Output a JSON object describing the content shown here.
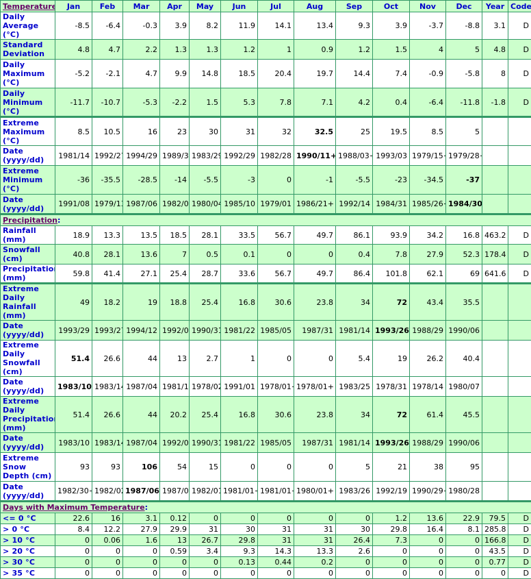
{
  "colors": {
    "label": "#0000cc",
    "section": "#660066",
    "green_row": "#ccffcc",
    "border": "#339966"
  },
  "columns": [
    "Jan",
    "Feb",
    "Mar",
    "Apr",
    "May",
    "Jun",
    "Jul",
    "Aug",
    "Sep",
    "Oct",
    "Nov",
    "Dec",
    "Year",
    "Code"
  ],
  "sections": [
    {
      "title": "Temperature",
      "rows": [
        {
          "label": "Daily Average (°C)",
          "bg": "w",
          "h": 28,
          "values": [
            "-8.5",
            "-6.4",
            "-0.3",
            "3.9",
            "8.2",
            "11.9",
            "14.1",
            "13.4",
            "9.3",
            "3.9",
            "-3.7",
            "-8.8",
            "3.1",
            "D"
          ],
          "bold": []
        },
        {
          "label": "Standard Deviation",
          "bg": "g",
          "h": 29,
          "values": [
            "4.8",
            "4.7",
            "2.2",
            "1.3",
            "1.3",
            "1.2",
            "1",
            "0.9",
            "1.2",
            "1.5",
            "4",
            "5",
            "4.8",
            "D"
          ],
          "bold": []
        },
        {
          "label": "Daily Maximum (°C)",
          "bg": "w",
          "h": 42,
          "values": [
            "-5.2",
            "-2.1",
            "4.7",
            "9.9",
            "14.8",
            "18.5",
            "20.4",
            "19.7",
            "14.4",
            "7.4",
            "-0.9",
            "-5.8",
            "8",
            "D"
          ],
          "bold": []
        },
        {
          "label": "Daily Minimum (°C)",
          "bg": "g",
          "h": 42,
          "values": [
            "-11.7",
            "-10.7",
            "-5.3",
            "-2.2",
            "1.5",
            "5.3",
            "7.8",
            "7.1",
            "4.2",
            "0.4",
            "-6.4",
            "-11.8",
            "-1.8",
            "D"
          ],
          "bold": []
        },
        {
          "label": "Extreme Maximum (°C)",
          "bg": "w",
          "h": 42,
          "sep": true,
          "values": [
            "8.5",
            "10.5",
            "16",
            "23",
            "30",
            "31",
            "32",
            "32.5",
            "25",
            "19.5",
            "8.5",
            "5",
            "",
            ""
          ],
          "bold": [
            7
          ]
        },
        {
          "label": "Date (yyyy/dd)",
          "bg": "w",
          "h": 29,
          "values": [
            "1981/14",
            "1992/27",
            "1994/29",
            "1989/30",
            "1983/29",
            "1992/29",
            "1982/28",
            "1990/11+",
            "1988/03+",
            "1993/03",
            "1979/15+",
            "1979/28+",
            "",
            ""
          ],
          "bold": [
            7
          ]
        },
        {
          "label": "Extreme Minimum (°C)",
          "bg": "g",
          "h": 42,
          "values": [
            "-36",
            "-35.5",
            "-28.5",
            "-14",
            "-5.5",
            "-3",
            "0",
            "-1",
            "-5.5",
            "-23",
            "-34.5",
            "-37",
            "",
            ""
          ],
          "bold": [
            11
          ]
        },
        {
          "label": "Date (yyyy/dd)",
          "bg": "g",
          "h": 29,
          "values": [
            "1991/08",
            "1979/13",
            "1987/06",
            "1982/05",
            "1980/04",
            "1985/10",
            "1979/01",
            "1986/21+",
            "1992/14",
            "1984/31",
            "1985/26+",
            "1984/30",
            "",
            ""
          ],
          "bold": [
            11
          ]
        }
      ]
    },
    {
      "title": "Precipitation",
      "rows": [
        {
          "label": "Rainfall (mm)",
          "bg": "w",
          "h": 17,
          "values": [
            "18.9",
            "13.3",
            "13.5",
            "18.5",
            "28.1",
            "33.5",
            "56.7",
            "49.7",
            "86.1",
            "93.9",
            "34.2",
            "16.8",
            "463.2",
            "D"
          ],
          "bold": []
        },
        {
          "label": "Snowfall (cm)",
          "bg": "g",
          "h": 29,
          "values": [
            "40.8",
            "28.1",
            "13.6",
            "7",
            "0.5",
            "0.1",
            "0",
            "0",
            "0.4",
            "7.8",
            "27.9",
            "52.3",
            "178.4",
            "D"
          ],
          "bold": []
        },
        {
          "label": "Precipitation (mm)",
          "bg": "w",
          "h": 28,
          "values": [
            "59.8",
            "41.4",
            "27.1",
            "25.4",
            "28.7",
            "33.6",
            "56.7",
            "49.7",
            "86.4",
            "101.8",
            "62.1",
            "69",
            "641.6",
            "D"
          ],
          "bold": []
        },
        {
          "label": "Extreme Daily Rainfall (mm)",
          "bg": "g",
          "h": 29,
          "sep": true,
          "values": [
            "49",
            "18.2",
            "19",
            "18.8",
            "25.4",
            "16.8",
            "30.6",
            "23.8",
            "34",
            "72",
            "43.4",
            "35.5",
            "",
            ""
          ],
          "bold": [
            9
          ]
        },
        {
          "label": "Date (yyyy/dd)",
          "bg": "g",
          "h": 29,
          "values": [
            "1993/29",
            "1993/27",
            "1994/12",
            "1992/01",
            "1990/31",
            "1981/22",
            "1985/05",
            "1987/31",
            "1981/14",
            "1993/26",
            "1988/29",
            "1990/06",
            "",
            ""
          ],
          "bold": [
            9
          ]
        },
        {
          "label": "Extreme Daily Snowfall (cm)",
          "bg": "w",
          "h": 42,
          "values": [
            "51.4",
            "26.6",
            "44",
            "13",
            "2.7",
            "1",
            "0",
            "0",
            "5.4",
            "19",
            "26.2",
            "40.4",
            "",
            ""
          ],
          "bold": [
            0
          ]
        },
        {
          "label": "Date (yyyy/dd)",
          "bg": "w",
          "h": 29,
          "values": [
            "1983/10",
            "1983/14",
            "1987/04",
            "1981/13",
            "1978/02",
            "1991/01",
            "1978/01+",
            "1978/01+",
            "1983/25",
            "1978/31",
            "1978/14",
            "1980/07",
            "",
            ""
          ],
          "bold": [
            0
          ]
        },
        {
          "label": "Extreme Daily Precipitation (mm)",
          "bg": "g",
          "h": 42,
          "values": [
            "51.4",
            "26.6",
            "44",
            "20.2",
            "25.4",
            "16.8",
            "30.6",
            "23.8",
            "34",
            "72",
            "61.4",
            "45.5",
            "",
            ""
          ],
          "bold": [
            9
          ]
        },
        {
          "label": "Date (yyyy/dd)",
          "bg": "g",
          "h": 29,
          "values": [
            "1983/10",
            "1983/14",
            "1987/04",
            "1992/01",
            "1990/31",
            "1981/22",
            "1985/05",
            "1987/31",
            "1981/14",
            "1993/26",
            "1988/29",
            "1990/06",
            "",
            ""
          ],
          "bold": [
            9
          ]
        },
        {
          "label": "Extreme Snow Depth (cm)",
          "bg": "w",
          "h": 42,
          "values": [
            "93",
            "93",
            "106",
            "54",
            "15",
            "0",
            "0",
            "0",
            "5",
            "21",
            "38",
            "95",
            "",
            ""
          ],
          "bold": [
            2
          ]
        },
        {
          "label": "Date (yyyy/dd)",
          "bg": "w",
          "h": 29,
          "values": [
            "1982/30+",
            "1982/02",
            "1987/06",
            "1987/01",
            "1982/01",
            "1981/01+",
            "1981/01+",
            "1980/01+",
            "1983/26",
            "1992/19",
            "1990/29+",
            "1980/28",
            "",
            ""
          ],
          "bold": [
            2
          ]
        }
      ]
    },
    {
      "title": "Days with Maximum Temperature",
      "rows": [
        {
          "label": "<= 0 °C",
          "bg": "g",
          "h": 16,
          "values": [
            "22.6",
            "16",
            "3.1",
            "0.12",
            "0",
            "0",
            "0",
            "0",
            "0",
            "1.2",
            "13.6",
            "22.9",
            "79.5",
            "D"
          ],
          "bold": []
        },
        {
          "label": "> 0 °C",
          "bg": "w",
          "h": 16,
          "values": [
            "8.4",
            "12.2",
            "27.9",
            "29.9",
            "31",
            "30",
            "31",
            "31",
            "30",
            "29.8",
            "16.4",
            "8.1",
            "285.8",
            "D"
          ],
          "bold": []
        },
        {
          "label": "> 10 °C",
          "bg": "g",
          "h": 16,
          "values": [
            "0",
            "0.06",
            "1.6",
            "13",
            "26.7",
            "29.8",
            "31",
            "31",
            "26.4",
            "7.3",
            "0",
            "0",
            "166.8",
            "D"
          ],
          "bold": []
        },
        {
          "label": "> 20 °C",
          "bg": "w",
          "h": 16,
          "values": [
            "0",
            "0",
            "0",
            "0.59",
            "3.4",
            "9.3",
            "14.3",
            "13.3",
            "2.6",
            "0",
            "0",
            "0",
            "43.5",
            "D"
          ],
          "bold": []
        },
        {
          "label": "> 30 °C",
          "bg": "g",
          "h": 16,
          "values": [
            "0",
            "0",
            "0",
            "0",
            "0",
            "0.13",
            "0.44",
            "0.2",
            "0",
            "0",
            "0",
            "0",
            "0.77",
            "D"
          ],
          "bold": []
        },
        {
          "label": "> 35 °C",
          "bg": "w",
          "h": 16,
          "values": [
            "0",
            "0",
            "0",
            "0",
            "0",
            "0",
            "0",
            "0",
            "0",
            "0",
            "0",
            "0",
            "0",
            "D"
          ],
          "bold": []
        }
      ]
    }
  ]
}
